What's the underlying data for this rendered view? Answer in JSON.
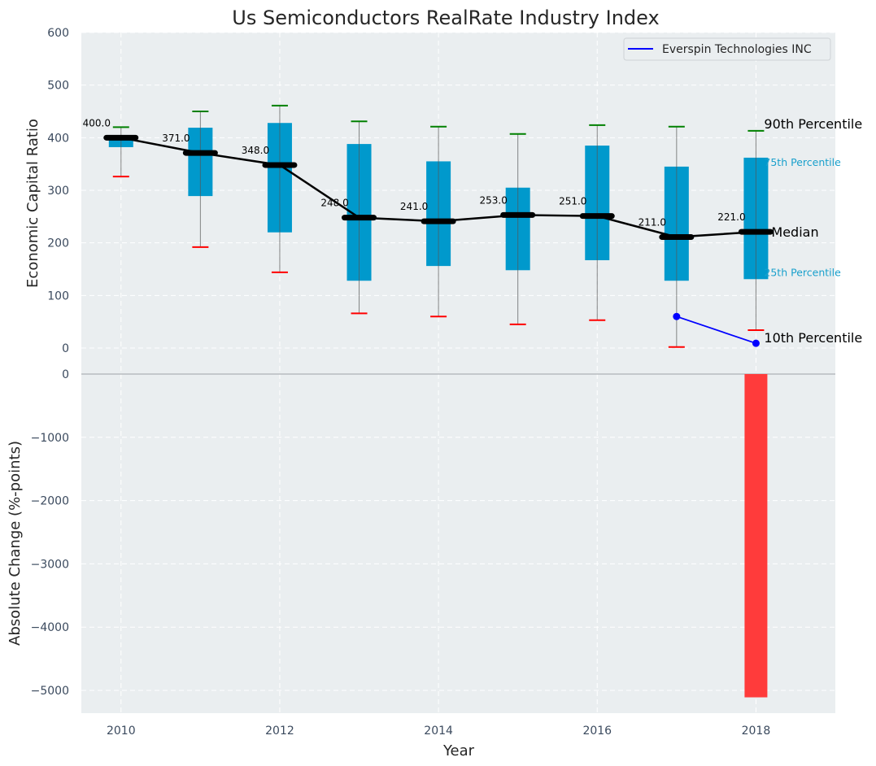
{
  "chart_data": [
    {
      "type": "box",
      "title": "Us Semiconductors RealRate Industry Index",
      "xlabel": "",
      "ylabel": "Economic Capital Ratio",
      "ylim": [
        0,
        600
      ],
      "xlim": [
        2009.5,
        2019.0
      ],
      "yticks": [
        0,
        100,
        200,
        300,
        400,
        500,
        600
      ],
      "grid": true,
      "legend": {
        "position": "top-right",
        "entries": [
          {
            "label": "Everspin Technologies INC",
            "color": "#0000ff"
          }
        ]
      },
      "years": [
        2010,
        2011,
        2012,
        2013,
        2014,
        2015,
        2016,
        2017,
        2018
      ],
      "p90": [
        420,
        450,
        461,
        431,
        421,
        407,
        424,
        421,
        413
      ],
      "p75": [
        400,
        419,
        428,
        388,
        355,
        305,
        385,
        345,
        362
      ],
      "median": [
        400.0,
        371.0,
        348.0,
        248.0,
        241.0,
        253.0,
        251.0,
        211.0,
        221.0
      ],
      "p25": [
        382,
        289,
        220,
        128,
        156,
        148,
        167,
        128,
        131
      ],
      "p10": [
        326,
        192,
        144,
        66,
        60,
        45,
        53,
        2,
        34
      ],
      "median_labels": [
        "400.0",
        "371.0",
        "348.0",
        "248.0",
        "241.0",
        "253.0",
        "251.0",
        "211.0",
        "221.0"
      ],
      "series": [
        {
          "name": "Everspin Technologies INC",
          "x": [
            2017,
            2018
          ],
          "values": [
            60,
            9
          ],
          "color": "#0000ff"
        }
      ],
      "annotations": {
        "p90": "90th Percentile",
        "p75": "75th Percentile",
        "median": "Median",
        "p25": "25th Percentile",
        "p10": "10th Percentile"
      },
      "colors": {
        "box": "#0099cc",
        "p90_cap": "#008000",
        "p10_cap": "#ff0000",
        "median": "#000000",
        "background": "#eaeef0"
      }
    },
    {
      "type": "bar",
      "title": "",
      "xlabel": "Year",
      "ylabel": "Absolute Change (%-points)",
      "ylim": [
        -5370,
        0
      ],
      "xlim": [
        2009.5,
        2019.0
      ],
      "yticks": [
        0,
        -1000,
        -2000,
        -3000,
        -4000,
        -5000
      ],
      "ytick_labels": [
        "0",
        "−1000",
        "−2000",
        "−3000",
        "−4000",
        "−5000"
      ],
      "xticks": [
        2010,
        2012,
        2014,
        2016,
        2018
      ],
      "xtick_labels": [
        "2010",
        "2012",
        "2014",
        "2016",
        "2018"
      ],
      "grid": true,
      "categories": [
        2018
      ],
      "values": [
        -5110
      ],
      "colors": {
        "bar": "#ff3b3b"
      }
    }
  ]
}
